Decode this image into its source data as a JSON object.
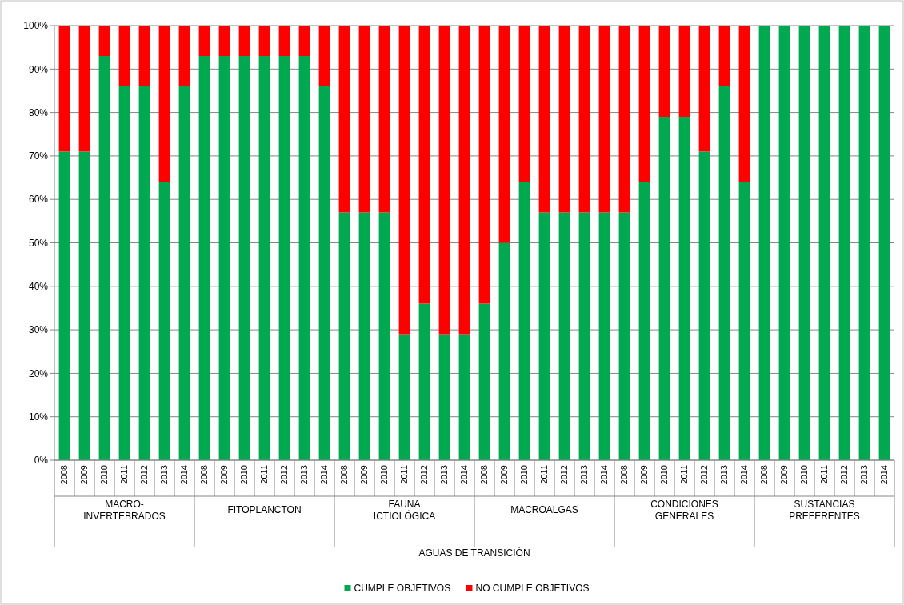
{
  "chart_data": {
    "type": "bar",
    "stacked": true,
    "categories": [
      "2008",
      "2009",
      "2010",
      "2011",
      "2012",
      "2013",
      "2014",
      "2008",
      "2009",
      "2010",
      "2011",
      "2012",
      "2013",
      "2014",
      "2008",
      "2009",
      "2010",
      "2011",
      "2012",
      "2013",
      "2014",
      "2008",
      "2009",
      "2010",
      "2011",
      "2012",
      "2013",
      "2014",
      "2008",
      "2009",
      "2010",
      "2011",
      "2012",
      "2013",
      "2014",
      "2008",
      "2009",
      "2010",
      "2011",
      "2012",
      "2013",
      "2014"
    ],
    "series": [
      {
        "name": "CUMPLE OBJETIVOS",
        "color": "#00a84f",
        "values": [
          71,
          71,
          93,
          86,
          86,
          64,
          86,
          93,
          93,
          93,
          93,
          93,
          93,
          86,
          57,
          57,
          57,
          29,
          36,
          29,
          29,
          36,
          50,
          64,
          57,
          57,
          57,
          57,
          57,
          64,
          79,
          79,
          71,
          86,
          64,
          100,
          100,
          100,
          100,
          100,
          100,
          100
        ]
      },
      {
        "name": "NO CUMPLE OBJETIVOS",
        "color": "#ff0000",
        "values": [
          29,
          29,
          7,
          14,
          14,
          36,
          14,
          7,
          7,
          7,
          7,
          7,
          7,
          14,
          43,
          43,
          43,
          71,
          64,
          71,
          71,
          64,
          50,
          36,
          43,
          43,
          43,
          43,
          43,
          36,
          21,
          21,
          29,
          14,
          36,
          0,
          0,
          0,
          0,
          0,
          0,
          0
        ]
      }
    ],
    "ylim": [
      0,
      100
    ],
    "yticks": [
      {
        "value": 0,
        "label": "0%"
      },
      {
        "value": 10,
        "label": "10%"
      },
      {
        "value": 20,
        "label": "20%"
      },
      {
        "value": 30,
        "label": "30%"
      },
      {
        "value": 40,
        "label": "40%"
      },
      {
        "value": 50,
        "label": "50%"
      },
      {
        "value": 60,
        "label": "60%"
      },
      {
        "value": 70,
        "label": "70%"
      },
      {
        "value": 80,
        "label": "80%"
      },
      {
        "value": 90,
        "label": "90%"
      },
      {
        "value": 100,
        "label": "100%"
      }
    ],
    "grid": "y",
    "legend": "bottom",
    "annotations": [
      "MACRO-\nINVERTEBRADOS",
      "FITOPLANCTON",
      "FAUNA\nICTIOLÓGICA",
      "MACROALGAS",
      "CONDICIONES\nGENERALES",
      "SUSTANCIAS\nPREFERENTES",
      "AGUAS DE TRANSICIÓN"
    ]
  }
}
